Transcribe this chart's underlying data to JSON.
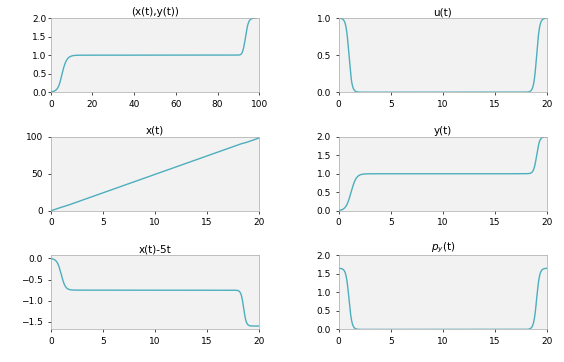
{
  "line_color": "#4DAEBD",
  "line_width": 1.0,
  "bg_color": "#ffffff",
  "axes_bg": "#f2f2f2",
  "titles": [
    "(x(t),y(t))",
    "u(t)",
    "x(t)",
    "y(t)",
    "x(t)-5t",
    "p_y(t)"
  ],
  "T": 20.0,
  "N": 2000,
  "title_fontsize": 7.5,
  "tick_fontsize": 6.5
}
